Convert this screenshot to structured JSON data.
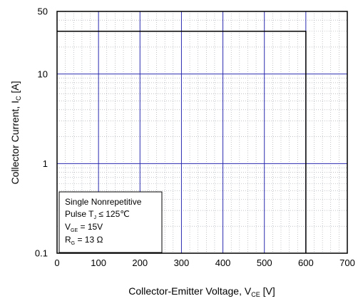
{
  "chart_data": {
    "type": "line",
    "title": "",
    "xlabel": {
      "main": "Collector-Emitter  Voltage, V",
      "sub": "CE",
      "unit": " [V]"
    },
    "ylabel": {
      "main": "Collector Current, I",
      "sub": "C",
      "unit": " [A]"
    },
    "xlim": [
      0,
      700
    ],
    "ylim": [
      0.1,
      50
    ],
    "yscale": "log",
    "grid": true,
    "x_ticks": [
      0,
      100,
      200,
      300,
      400,
      500,
      600,
      700
    ],
    "x_tick_labels": [
      "0",
      "100",
      "200",
      "300",
      "400",
      "500",
      "600",
      "700"
    ],
    "y_ticks": [
      0.1,
      1,
      10,
      50
    ],
    "y_tick_labels": [
      "0.1",
      "1",
      "10",
      "50"
    ],
    "series": [
      {
        "x": [
          0,
          600,
          600
        ],
        "y": [
          30,
          30,
          0.1
        ]
      }
    ],
    "annotation": {
      "line1": "Single Nonrepetitive",
      "line2_pre": "Pulse T",
      "line2_sub": "J",
      "line2_post": " ≤  125℃",
      "line3_pre": "V",
      "line3_sub": "GE",
      "line3_post": " =  15V",
      "line4_pre": "R",
      "line4_sub": "G",
      "line4_post": " = 13 Ω"
    },
    "colors": {
      "major_grid": "#2b2bb0",
      "minor_grid": "#9aa0a8",
      "frame": "#000000",
      "line": "#000000"
    }
  }
}
